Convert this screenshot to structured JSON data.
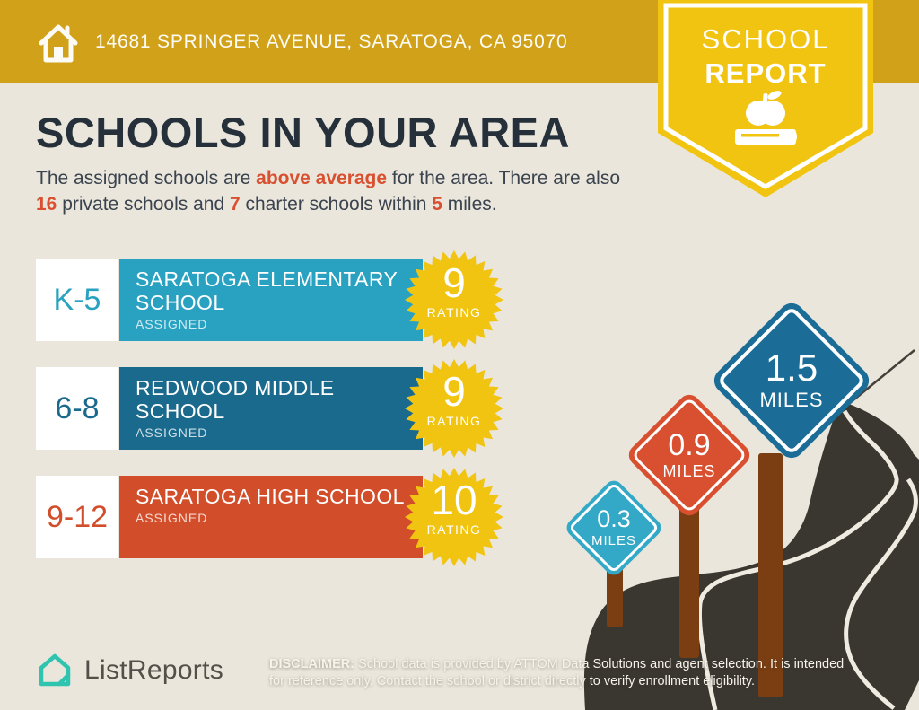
{
  "banner": {
    "address": "14681 SPRINGER AVENUE, SARATOGA, CA 95070",
    "bg": "#D1A219"
  },
  "badge": {
    "line1": "SCHOOL",
    "line2": "REPORT",
    "bg": "#F2C412"
  },
  "heading": {
    "title": "SCHOOLS IN YOUR AREA"
  },
  "intro": {
    "part1": "The assigned schools are ",
    "highlight1": "above average",
    "part2": " for the area. There are also ",
    "count_private": "16",
    "part3": " private schools and ",
    "count_charter": "7",
    "part4": " charter schools within ",
    "count_miles": "5",
    "part5": " miles."
  },
  "schools": [
    {
      "grade": "K-5",
      "name": "SARATOGA ELEMENTARY SCHOOL",
      "status": "ASSIGNED",
      "rating": "9",
      "rating_label": "RATING",
      "color": "#29A2C1"
    },
    {
      "grade": "6-8",
      "name": "REDWOOD MIDDLE SCHOOL",
      "status": "ASSIGNED",
      "rating": "9",
      "rating_label": "RATING",
      "color": "#1A6A8E"
    },
    {
      "grade": "9-12",
      "name": "SARATOGA HIGH SCHOOL",
      "status": "ASSIGNED",
      "rating": "10",
      "rating_label": "RATING",
      "color": "#D24E2B"
    }
  ],
  "signs": [
    {
      "distance": "0.3",
      "unit": "MILES",
      "color": "#33A9C7"
    },
    {
      "distance": "0.9",
      "unit": "MILES",
      "color": "#D8502F"
    },
    {
      "distance": "1.5",
      "unit": "MILES",
      "color": "#1B6D97"
    }
  ],
  "footer": {
    "logo_text": "ListReports",
    "logo_color": "#2EC4B0",
    "disclaimer_label": "DISCLAIMER:",
    "disclaimer_text": " School data is provided by ATTOM Data Solutions and agent selection. It is intended for reference only. Contact the school or district directly to verify enrollment eligibility."
  },
  "colors": {
    "starburst": "#F1C411",
    "road": "#3A3731",
    "background": "#EAE6DC",
    "heading_navy": "#26303B",
    "accent_red": "#D8502F"
  }
}
